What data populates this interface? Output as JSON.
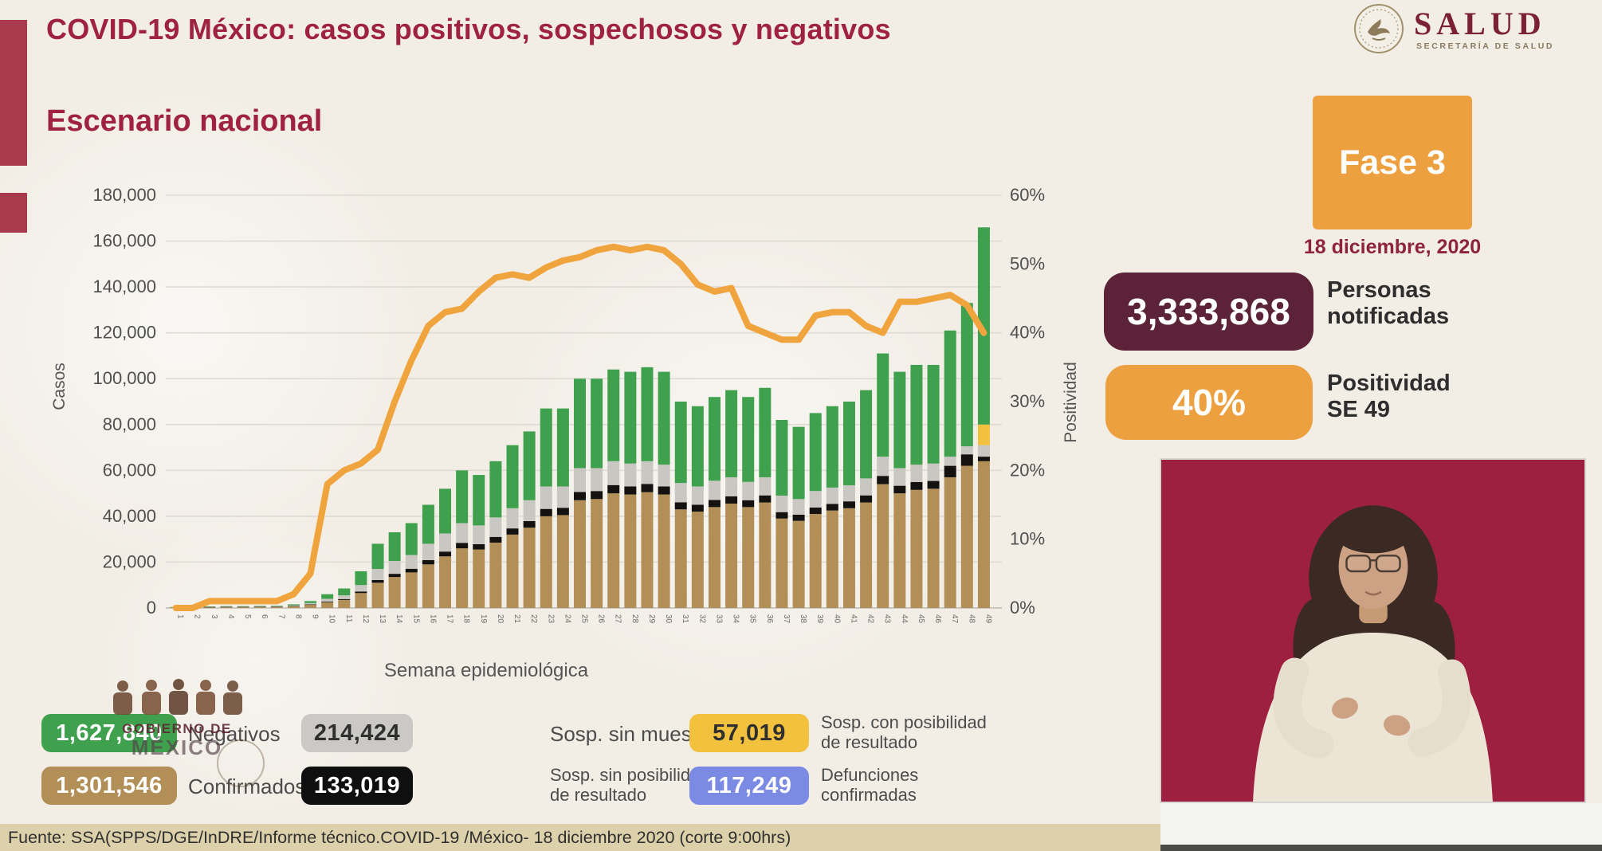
{
  "header": {
    "title": "COVID-19 México: casos positivos, sospechosos y negativos",
    "brand": "SALUD",
    "brand_subtitle": "SECRETARÍA DE SALUD"
  },
  "section_title": "Escenario nacional",
  "phase_badge": {
    "label": "Fase 3",
    "date": "18 diciembre, 2020"
  },
  "stats": {
    "notified": {
      "value": "3,333,868",
      "label_line1": "Personas",
      "label_line2": "notificadas"
    },
    "positivity": {
      "value": "40%",
      "label_line1": "Positividad",
      "label_line2": "SE 49"
    }
  },
  "watermark": {
    "line1": "GOBIERNO DE",
    "line2": "MÉXICO"
  },
  "legend": {
    "row1": [
      {
        "value": "1,627,840",
        "label_line1": "Negativos",
        "label_line2": "",
        "color": "#3fa04e"
      },
      {
        "value": "214,424",
        "label_line1": "Sosp. sin muestra",
        "label_line2": "",
        "color": "#cbc9c5"
      },
      {
        "value": "57,019",
        "label_line1": "Sosp. con posibilidad",
        "label_line2": "de resultado",
        "color": "#f2c13e"
      }
    ],
    "row2": [
      {
        "value": "1,301,546",
        "label_line1": "Confirmados",
        "label_line2": "",
        "color": "#b28f57"
      },
      {
        "value": "133,019",
        "label_line1": "Sosp. sin posibilidad",
        "label_line2": "de resultado",
        "color": "#0f0f0f"
      },
      {
        "value": "117,249",
        "label_line1": "Defunciones",
        "label_line2": "confirmadas",
        "color": "#7b8be4"
      }
    ]
  },
  "footer": {
    "source": "Fuente: SSA(SPPS/DGE/InDRE/Informe técnico.COVID-19 /México- 18 diciembre 2020 (corte 9:00hrs)"
  },
  "chart_data": {
    "type": "bar",
    "subtype": "stacked bars with overlaid positivity line",
    "title": "Escenario nacional",
    "xlabel": "Semana epidemiológica",
    "ylabel_left": "Casos",
    "ylabel_right": "Positividad",
    "grid": true,
    "cases_max": 180000,
    "positivity_max": 60,
    "y_tick_values": [
      180000,
      160000,
      140000,
      120000,
      100000,
      80000,
      60000,
      40000,
      20000,
      0
    ],
    "y_tick_labels": [
      "180,000",
      "160,000",
      "140,000",
      "120,000",
      "100,000",
      "80,000",
      "60,000",
      "40,000",
      "20,000",
      "0"
    ],
    "right_tick_values": [
      60,
      50,
      40,
      30,
      20,
      10,
      0
    ],
    "right_tick_labels": [
      "60%",
      "50%",
      "40%",
      "30%",
      "20%",
      "10%",
      "0%"
    ],
    "x": [
      1,
      2,
      3,
      4,
      5,
      6,
      7,
      8,
      9,
      10,
      11,
      12,
      13,
      14,
      15,
      16,
      17,
      18,
      19,
      20,
      21,
      22,
      23,
      24,
      25,
      26,
      27,
      28,
      29,
      30,
      31,
      32,
      33,
      34,
      35,
      36,
      37,
      38,
      39,
      40,
      41,
      42,
      43,
      44,
      45,
      46,
      47,
      48,
      49
    ],
    "series": {
      "confirmed": {
        "name": "Confirmados",
        "color": "#b28f57",
        "values": [
          300,
          350,
          400,
          450,
          450,
          500,
          550,
          800,
          1400,
          2500,
          3500,
          6500,
          11000,
          13500,
          15500,
          19000,
          22500,
          26000,
          25500,
          28500,
          32000,
          35000,
          40000,
          40500,
          47000,
          47500,
          50000,
          49500,
          50500,
          49500,
          43000,
          42000,
          44000,
          45500,
          44000,
          46000,
          39000,
          38000,
          41000,
          42500,
          43500,
          46000,
          54000,
          50000,
          51500,
          52000,
          57000,
          62000,
          64000
        ]
      },
      "susp_no_result": {
        "name": "Sosp. sin posibilidad de resultado",
        "color": "#141210",
        "values": [
          0,
          0,
          50,
          50,
          50,
          50,
          50,
          100,
          150,
          300,
          400,
          700,
          1200,
          1400,
          1600,
          1900,
          2100,
          2400,
          2300,
          2500,
          2700,
          2900,
          3200,
          3200,
          3600,
          3500,
          3600,
          3500,
          3600,
          3500,
          3100,
          3000,
          3100,
          3200,
          3000,
          3100,
          2800,
          2700,
          2800,
          2900,
          3000,
          3100,
          3600,
          3300,
          3400,
          3400,
          5000,
          5000,
          2000
        ]
      },
      "susp_no_sample": {
        "name": "Sosp. sin muestra",
        "color": "#c9c7c2",
        "values": [
          50,
          100,
          150,
          150,
          150,
          200,
          200,
          300,
          600,
          1200,
          1600,
          2800,
          4800,
          5600,
          6000,
          7100,
          7900,
          8600,
          8200,
          8500,
          8800,
          9100,
          9800,
          9300,
          10400,
          10000,
          10400,
          10000,
          9900,
          9500,
          8400,
          8000,
          8400,
          8300,
          8000,
          7900,
          7200,
          6800,
          7200,
          7100,
          7000,
          7400,
          8400,
          7700,
          7600,
          7600,
          4000,
          3500,
          5000
        ]
      },
      "susp_possible": {
        "name": "Sosp. con posibilidad de resultado",
        "color": "#f2c13e",
        "values": [
          0,
          0,
          0,
          0,
          0,
          0,
          0,
          0,
          0,
          0,
          0,
          0,
          0,
          0,
          0,
          0,
          0,
          0,
          0,
          0,
          0,
          0,
          0,
          0,
          0,
          0,
          0,
          0,
          0,
          0,
          0,
          0,
          0,
          0,
          0,
          0,
          0,
          0,
          0,
          0,
          0,
          0,
          0,
          0,
          0,
          0,
          0,
          0,
          9000
        ]
      },
      "negative": {
        "name": "Negativos",
        "color": "#3fa04e",
        "values": [
          50,
          50,
          100,
          150,
          150,
          150,
          200,
          400,
          850,
          2000,
          3000,
          6000,
          11000,
          12500,
          13900,
          17000,
          19500,
          23000,
          22000,
          24500,
          27500,
          30000,
          34000,
          34000,
          39000,
          39000,
          40000,
          40000,
          41000,
          40500,
          35500,
          35000,
          36500,
          38000,
          37000,
          39000,
          33000,
          31500,
          34000,
          35500,
          36500,
          38500,
          45000,
          42000,
          43500,
          43000,
          55000,
          62500,
          86000
        ]
      },
      "positivity": {
        "name": "Positividad (%)",
        "color": "#f0a43e",
        "values": [
          0,
          0,
          1,
          1,
          1,
          1,
          1,
          2,
          5,
          18,
          20,
          21,
          23,
          30,
          36,
          41,
          43,
          43.5,
          46,
          48,
          48.5,
          48,
          49.5,
          50.5,
          51,
          52,
          52.5,
          52,
          52.5,
          52,
          50,
          47,
          46,
          46.5,
          41,
          40,
          39,
          39,
          42.5,
          43,
          43,
          41,
          40,
          44.5,
          44.5,
          45,
          45.5,
          44,
          40
        ]
      }
    },
    "legend_position": "bottom (as value pills)"
  }
}
